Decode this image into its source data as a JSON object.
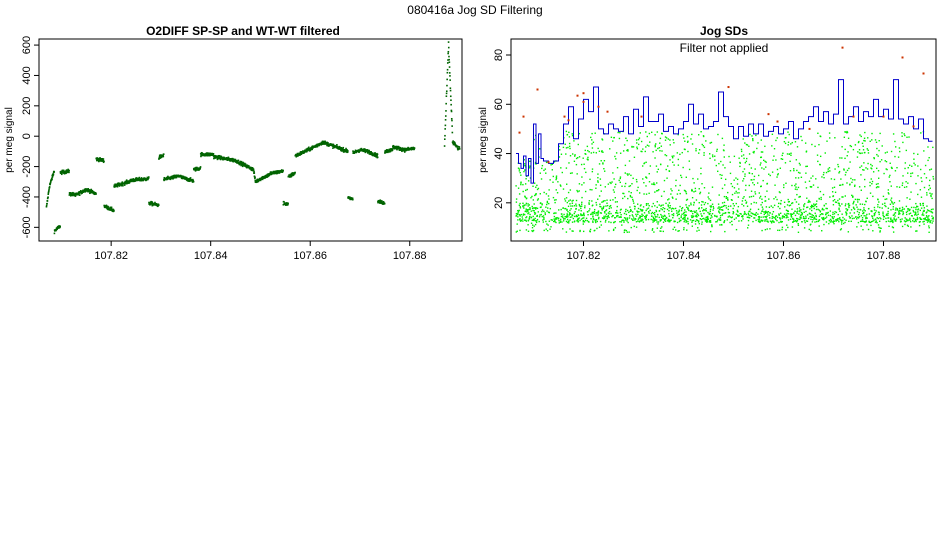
{
  "page_title": "080416a   Jog SD Filtering",
  "chart_data": [
    {
      "type": "scatter",
      "title": "O2DIFF SP-SP and WT-WT filtered",
      "xlabel": "",
      "ylabel": "per meg signal",
      "xlim": [
        107.8055,
        107.8905
      ],
      "ylim": [
        -690,
        640
      ],
      "x_ticks": [
        107.82,
        107.84,
        107.86,
        107.88
      ],
      "y_ticks": [
        -600,
        -400,
        -200,
        0,
        200,
        400,
        600
      ],
      "grid": false,
      "colors": {
        "points": "#006400"
      },
      "series": [
        {
          "values": [
            {
              "x0": 107.807,
              "x1": 107.8076,
              "y0": -470,
              "y1": -330
            },
            {
              "x0": 107.8076,
              "x1": 107.8086,
              "y0": -330,
              "y1": -225
            },
            {
              "x0": 107.8086,
              "x1": 107.8098,
              "y0": -625,
              "y1": -590
            },
            {
              "x0": 107.8098,
              "x1": 107.8116,
              "y0": -240,
              "y1": -230
            },
            {
              "x0": 107.8116,
              "x1": 107.8128,
              "y0": -380,
              "y1": -385
            },
            {
              "x0": 107.8128,
              "x1": 107.815,
              "y0": -390,
              "y1": -350
            },
            {
              "x0": 107.815,
              "x1": 107.817,
              "y0": -350,
              "y1": -380
            },
            {
              "x0": 107.817,
              "x1": 107.8186,
              "y0": -150,
              "y1": -160
            },
            {
              "x0": 107.8186,
              "x1": 107.8206,
              "y0": -460,
              "y1": -490
            },
            {
              "x0": 107.8206,
              "x1": 107.824,
              "y0": -330,
              "y1": -295
            },
            {
              "x0": 107.824,
              "x1": 107.8276,
              "y0": -290,
              "y1": -280
            },
            {
              "x0": 107.8276,
              "x1": 107.8296,
              "y0": -440,
              "y1": -455
            },
            {
              "x0": 107.8296,
              "x1": 107.8306,
              "y0": -140,
              "y1": -125
            },
            {
              "x0": 107.8306,
              "x1": 107.834,
              "y0": -285,
              "y1": -260
            },
            {
              "x0": 107.834,
              "x1": 107.8366,
              "y0": -270,
              "y1": -295
            },
            {
              "x0": 107.8366,
              "x1": 107.838,
              "y0": -220,
              "y1": -210
            },
            {
              "x0": 107.838,
              "x1": 107.8406,
              "y0": -120,
              "y1": -120
            },
            {
              "x0": 107.8406,
              "x1": 107.845,
              "y0": -135,
              "y1": -160
            },
            {
              "x0": 107.845,
              "x1": 107.8486,
              "y0": -160,
              "y1": -220
            },
            {
              "x0": 107.8486,
              "x1": 107.849,
              "y0": -220,
              "y1": -300
            },
            {
              "x0": 107.849,
              "x1": 107.85,
              "y0": -300,
              "y1": -280
            },
            {
              "x0": 107.85,
              "x1": 107.852,
              "y0": -280,
              "y1": -250
            },
            {
              "x0": 107.852,
              "x1": 107.8546,
              "y0": -245,
              "y1": -230
            },
            {
              "x0": 107.8546,
              "x1": 107.8556,
              "y0": -440,
              "y1": -450
            },
            {
              "x0": 107.8556,
              "x1": 107.857,
              "y0": -270,
              "y1": -240
            },
            {
              "x0": 107.857,
              "x1": 107.8596,
              "y0": -130,
              "y1": -90
            },
            {
              "x0": 107.8596,
              "x1": 107.8626,
              "y0": -90,
              "y1": -40
            },
            {
              "x0": 107.8626,
              "x1": 107.8676,
              "y0": -40,
              "y1": -100
            },
            {
              "x0": 107.8676,
              "x1": 107.8686,
              "y0": -400,
              "y1": -420
            },
            {
              "x0": 107.8686,
              "x1": 107.87,
              "y0": -110,
              "y1": -90
            },
            {
              "x0": 107.87,
              "x1": 107.8716,
              "y0": -90,
              "y1": -100
            },
            {
              "x0": 107.8716,
              "x1": 107.8736,
              "y0": -100,
              "y1": -130
            },
            {
              "x0": 107.8736,
              "x1": 107.875,
              "y0": -430,
              "y1": -440
            },
            {
              "x0": 107.875,
              "x1": 107.8766,
              "y0": -100,
              "y1": -90
            },
            {
              "x0": 107.8766,
              "x1": 107.879,
              "y0": -70,
              "y1": -90
            },
            {
              "x0": 107.879,
              "x1": 107.881,
              "y0": -90,
              "y1": -80
            }
          ]
        }
      ]
    },
    {
      "type": "line",
      "title": "Jog SDs",
      "annotation": "Filter not applied",
      "xlabel": "",
      "ylabel": "per meg signal",
      "xlim": [
        107.8055,
        107.8905
      ],
      "ylim": [
        4.5,
        86.5
      ],
      "x_ticks": [
        107.82,
        107.84,
        107.86,
        107.88
      ],
      "y_ticks": [
        20,
        40,
        60,
        80
      ],
      "grid": false,
      "colors": {
        "points": "#00ee00",
        "line": "#0000cc",
        "outliers": "#cc3300"
      },
      "series": [
        {
          "values": [
            {
              "x": 107.8065,
              "y": 40
            },
            {
              "x": 107.807,
              "y": 36
            },
            {
              "x": 107.8075,
              "y": 34
            },
            {
              "x": 107.808,
              "y": 39
            },
            {
              "x": 107.8085,
              "y": 31
            },
            {
              "x": 107.809,
              "y": 38
            },
            {
              "x": 107.8095,
              "y": 28
            },
            {
              "x": 107.81,
              "y": 52
            },
            {
              "x": 107.8105,
              "y": 36
            },
            {
              "x": 107.811,
              "y": 48
            },
            {
              "x": 107.8115,
              "y": 38
            },
            {
              "x": 107.812,
              "y": 37
            },
            {
              "x": 107.813,
              "y": 36
            },
            {
              "x": 107.814,
              "y": 37
            },
            {
              "x": 107.815,
              "y": 44
            },
            {
              "x": 107.816,
              "y": 52
            },
            {
              "x": 107.817,
              "y": 59
            },
            {
              "x": 107.818,
              "y": 46
            },
            {
              "x": 107.819,
              "y": 54
            },
            {
              "x": 107.82,
              "y": 62
            },
            {
              "x": 107.821,
              "y": 57
            },
            {
              "x": 107.822,
              "y": 67
            },
            {
              "x": 107.823,
              "y": 50
            },
            {
              "x": 107.824,
              "y": 48
            },
            {
              "x": 107.825,
              "y": 52
            },
            {
              "x": 107.826,
              "y": 50
            },
            {
              "x": 107.827,
              "y": 49
            },
            {
              "x": 107.828,
              "y": 55
            },
            {
              "x": 107.829,
              "y": 48
            },
            {
              "x": 107.83,
              "y": 58
            },
            {
              "x": 107.831,
              "y": 51
            },
            {
              "x": 107.832,
              "y": 63
            },
            {
              "x": 107.833,
              "y": 53
            },
            {
              "x": 107.834,
              "y": 53
            },
            {
              "x": 107.835,
              "y": 56
            },
            {
              "x": 107.836,
              "y": 49
            },
            {
              "x": 107.837,
              "y": 51
            },
            {
              "x": 107.838,
              "y": 48
            },
            {
              "x": 107.839,
              "y": 50
            },
            {
              "x": 107.84,
              "y": 53
            },
            {
              "x": 107.841,
              "y": 60
            },
            {
              "x": 107.842,
              "y": 52
            },
            {
              "x": 107.843,
              "y": 56
            },
            {
              "x": 107.844,
              "y": 50
            },
            {
              "x": 107.845,
              "y": 51
            },
            {
              "x": 107.846,
              "y": 53
            },
            {
              "x": 107.847,
              "y": 65
            },
            {
              "x": 107.848,
              "y": 55
            },
            {
              "x": 107.849,
              "y": 51
            },
            {
              "x": 107.85,
              "y": 46
            },
            {
              "x": 107.851,
              "y": 51
            },
            {
              "x": 107.852,
              "y": 47
            },
            {
              "x": 107.853,
              "y": 52
            },
            {
              "x": 107.854,
              "y": 48
            },
            {
              "x": 107.855,
              "y": 52
            },
            {
              "x": 107.856,
              "y": 47
            },
            {
              "x": 107.857,
              "y": 49
            },
            {
              "x": 107.858,
              "y": 51
            },
            {
              "x": 107.859,
              "y": 48
            },
            {
              "x": 107.86,
              "y": 50
            },
            {
              "x": 107.861,
              "y": 53
            },
            {
              "x": 107.862,
              "y": 46
            },
            {
              "x": 107.863,
              "y": 50
            },
            {
              "x": 107.864,
              "y": 53
            },
            {
              "x": 107.865,
              "y": 55
            },
            {
              "x": 107.866,
              "y": 59
            },
            {
              "x": 107.867,
              "y": 53
            },
            {
              "x": 107.868,
              "y": 57
            },
            {
              "x": 107.869,
              "y": 52
            },
            {
              "x": 107.87,
              "y": 56
            },
            {
              "x": 107.871,
              "y": 70
            },
            {
              "x": 107.872,
              "y": 52
            },
            {
              "x": 107.873,
              "y": 55
            },
            {
              "x": 107.874,
              "y": 59
            },
            {
              "x": 107.875,
              "y": 53
            },
            {
              "x": 107.876,
              "y": 57
            },
            {
              "x": 107.877,
              "y": 55
            },
            {
              "x": 107.878,
              "y": 62
            },
            {
              "x": 107.879,
              "y": 55
            },
            {
              "x": 107.88,
              "y": 58
            },
            {
              "x": 107.881,
              "y": 54
            },
            {
              "x": 107.882,
              "y": 70
            },
            {
              "x": 107.883,
              "y": 54
            },
            {
              "x": 107.884,
              "y": 52
            },
            {
              "x": 107.885,
              "y": 55
            },
            {
              "x": 107.886,
              "y": 50
            },
            {
              "x": 107.887,
              "y": 54
            },
            {
              "x": 107.888,
              "y": 46
            },
            {
              "x": 107.889,
              "y": 45
            }
          ]
        },
        {
          "values": [
            {
              "x": 107.8072,
              "y": 48.5
            },
            {
              "x": 107.808,
              "y": 55
            },
            {
              "x": 107.8108,
              "y": 66
            },
            {
              "x": 107.813,
              "y": 36.5
            },
            {
              "x": 107.8162,
              "y": 55
            },
            {
              "x": 107.817,
              "y": 53.5
            },
            {
              "x": 107.8188,
              "y": 63.5
            },
            {
              "x": 107.82,
              "y": 64.5
            },
            {
              "x": 107.82,
              "y": 61
            },
            {
              "x": 107.823,
              "y": 59
            },
            {
              "x": 107.8248,
              "y": 57
            },
            {
              "x": 107.8316,
              "y": 55
            },
            {
              "x": 107.849,
              "y": 67
            },
            {
              "x": 107.857,
              "y": 56
            },
            {
              "x": 107.8588,
              "y": 53
            },
            {
              "x": 107.8652,
              "y": 50
            },
            {
              "x": 107.8718,
              "y": 83
            },
            {
              "x": 107.874,
              "y": 55
            },
            {
              "x": 107.88,
              "y": 55
            },
            {
              "x": 107.8838,
              "y": 79
            },
            {
              "x": 107.886,
              "y": 51
            },
            {
              "x": 107.888,
              "y": 72.5
            }
          ]
        }
      ]
    }
  ]
}
